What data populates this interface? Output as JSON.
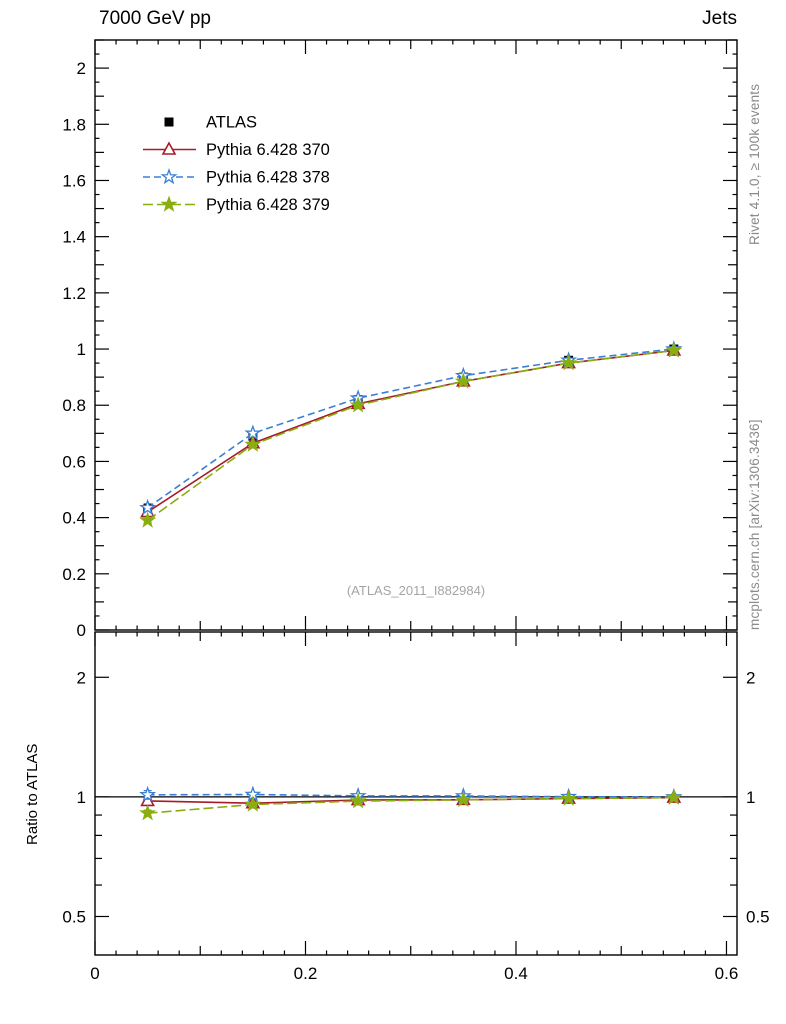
{
  "chart_data": {
    "type": "line",
    "title_left": "7000 GeV pp",
    "title_right": "Jets",
    "annotation": "(ATLAS_2011_I882984)",
    "rivet_label": "Rivet 4.1.0, ≥ 100k events",
    "mcplots_label": "mcplots.cern.ch [arXiv:1306.3436]",
    "x": [
      0.05,
      0.15,
      0.25,
      0.35,
      0.45,
      0.55
    ],
    "xlim": [
      0,
      0.61
    ],
    "x_tick_labels": [
      "0",
      "0.2",
      "0.4",
      "0.6"
    ],
    "main_panel": {
      "ylim": [
        0,
        2.1
      ],
      "ytick_labels": [
        "0",
        "0.2",
        "0.4",
        "0.6",
        "0.8",
        "1",
        "1.2",
        "1.4",
        "1.6",
        "1.8",
        "2"
      ],
      "grid": false
    },
    "ratio_panel": {
      "ylabel": "Ratio to ATLAS",
      "scale": "log",
      "ylim": [
        0.4,
        2.6
      ],
      "ytick_values": [
        0.5,
        1,
        2
      ],
      "ytick_labels": [
        "0.5",
        "1",
        "2"
      ],
      "minor_ticks": [
        0.6,
        0.7,
        0.8,
        0.9
      ],
      "reference_line": 1
    },
    "series": [
      {
        "name": "ATLAS",
        "color": "#000000",
        "marker": "square",
        "marker_fill": "filled",
        "line_style": "none",
        "dash": "",
        "values": [
          0.43,
          0.69,
          0.82,
          0.9,
          0.96,
          1.0
        ],
        "errors": [
          0.018,
          0.012,
          0.01,
          0.009,
          0.007,
          0.006
        ],
        "ratio": null
      },
      {
        "name": "Pythia 6.428 370",
        "color": "#a81a28",
        "marker": "triangle",
        "marker_fill": "open",
        "line_style": "solid",
        "dash": "",
        "values": [
          0.42,
          0.665,
          0.805,
          0.885,
          0.95,
          0.995
        ],
        "errors": [
          0.006,
          0.005,
          0.004,
          0.004,
          0.003,
          0.003
        ],
        "ratio": [
          0.977,
          0.964,
          0.982,
          0.983,
          0.99,
          0.996
        ],
        "ratio_errors": [
          0.018,
          0.01,
          0.008,
          0.007,
          0.006,
          0.005
        ]
      },
      {
        "name": "Pythia 6.428 378",
        "color": "#3a7fd5",
        "marker": "star",
        "marker_fill": "open",
        "line_style": "dashed",
        "dash": "7 4",
        "values": [
          0.435,
          0.7,
          0.825,
          0.905,
          0.96,
          1.0
        ],
        "errors": [
          0.006,
          0.005,
          0.004,
          0.004,
          0.003,
          0.003
        ],
        "ratio": [
          1.012,
          1.014,
          1.006,
          1.005,
          1.001,
          1.0
        ],
        "ratio_errors": [
          0.025,
          0.012,
          0.009,
          0.007,
          0.006,
          0.005
        ]
      },
      {
        "name": "Pythia 6.428 379",
        "color": "#8aae10",
        "marker": "star",
        "marker_fill": "filled",
        "line_style": "dashed",
        "dash": "10 4",
        "values": [
          0.39,
          0.66,
          0.8,
          0.885,
          0.95,
          0.995
        ],
        "errors": [
          0.006,
          0.005,
          0.004,
          0.004,
          0.003,
          0.003
        ],
        "ratio": [
          0.91,
          0.957,
          0.976,
          0.983,
          0.99,
          0.996
        ],
        "ratio_errors": [
          0.016,
          0.01,
          0.008,
          0.007,
          0.006,
          0.005
        ]
      }
    ],
    "legend": {
      "position": "top-left",
      "items": [
        "ATLAS",
        "Pythia 6.428 370",
        "Pythia 6.428 378",
        "Pythia 6.428 379"
      ]
    }
  }
}
